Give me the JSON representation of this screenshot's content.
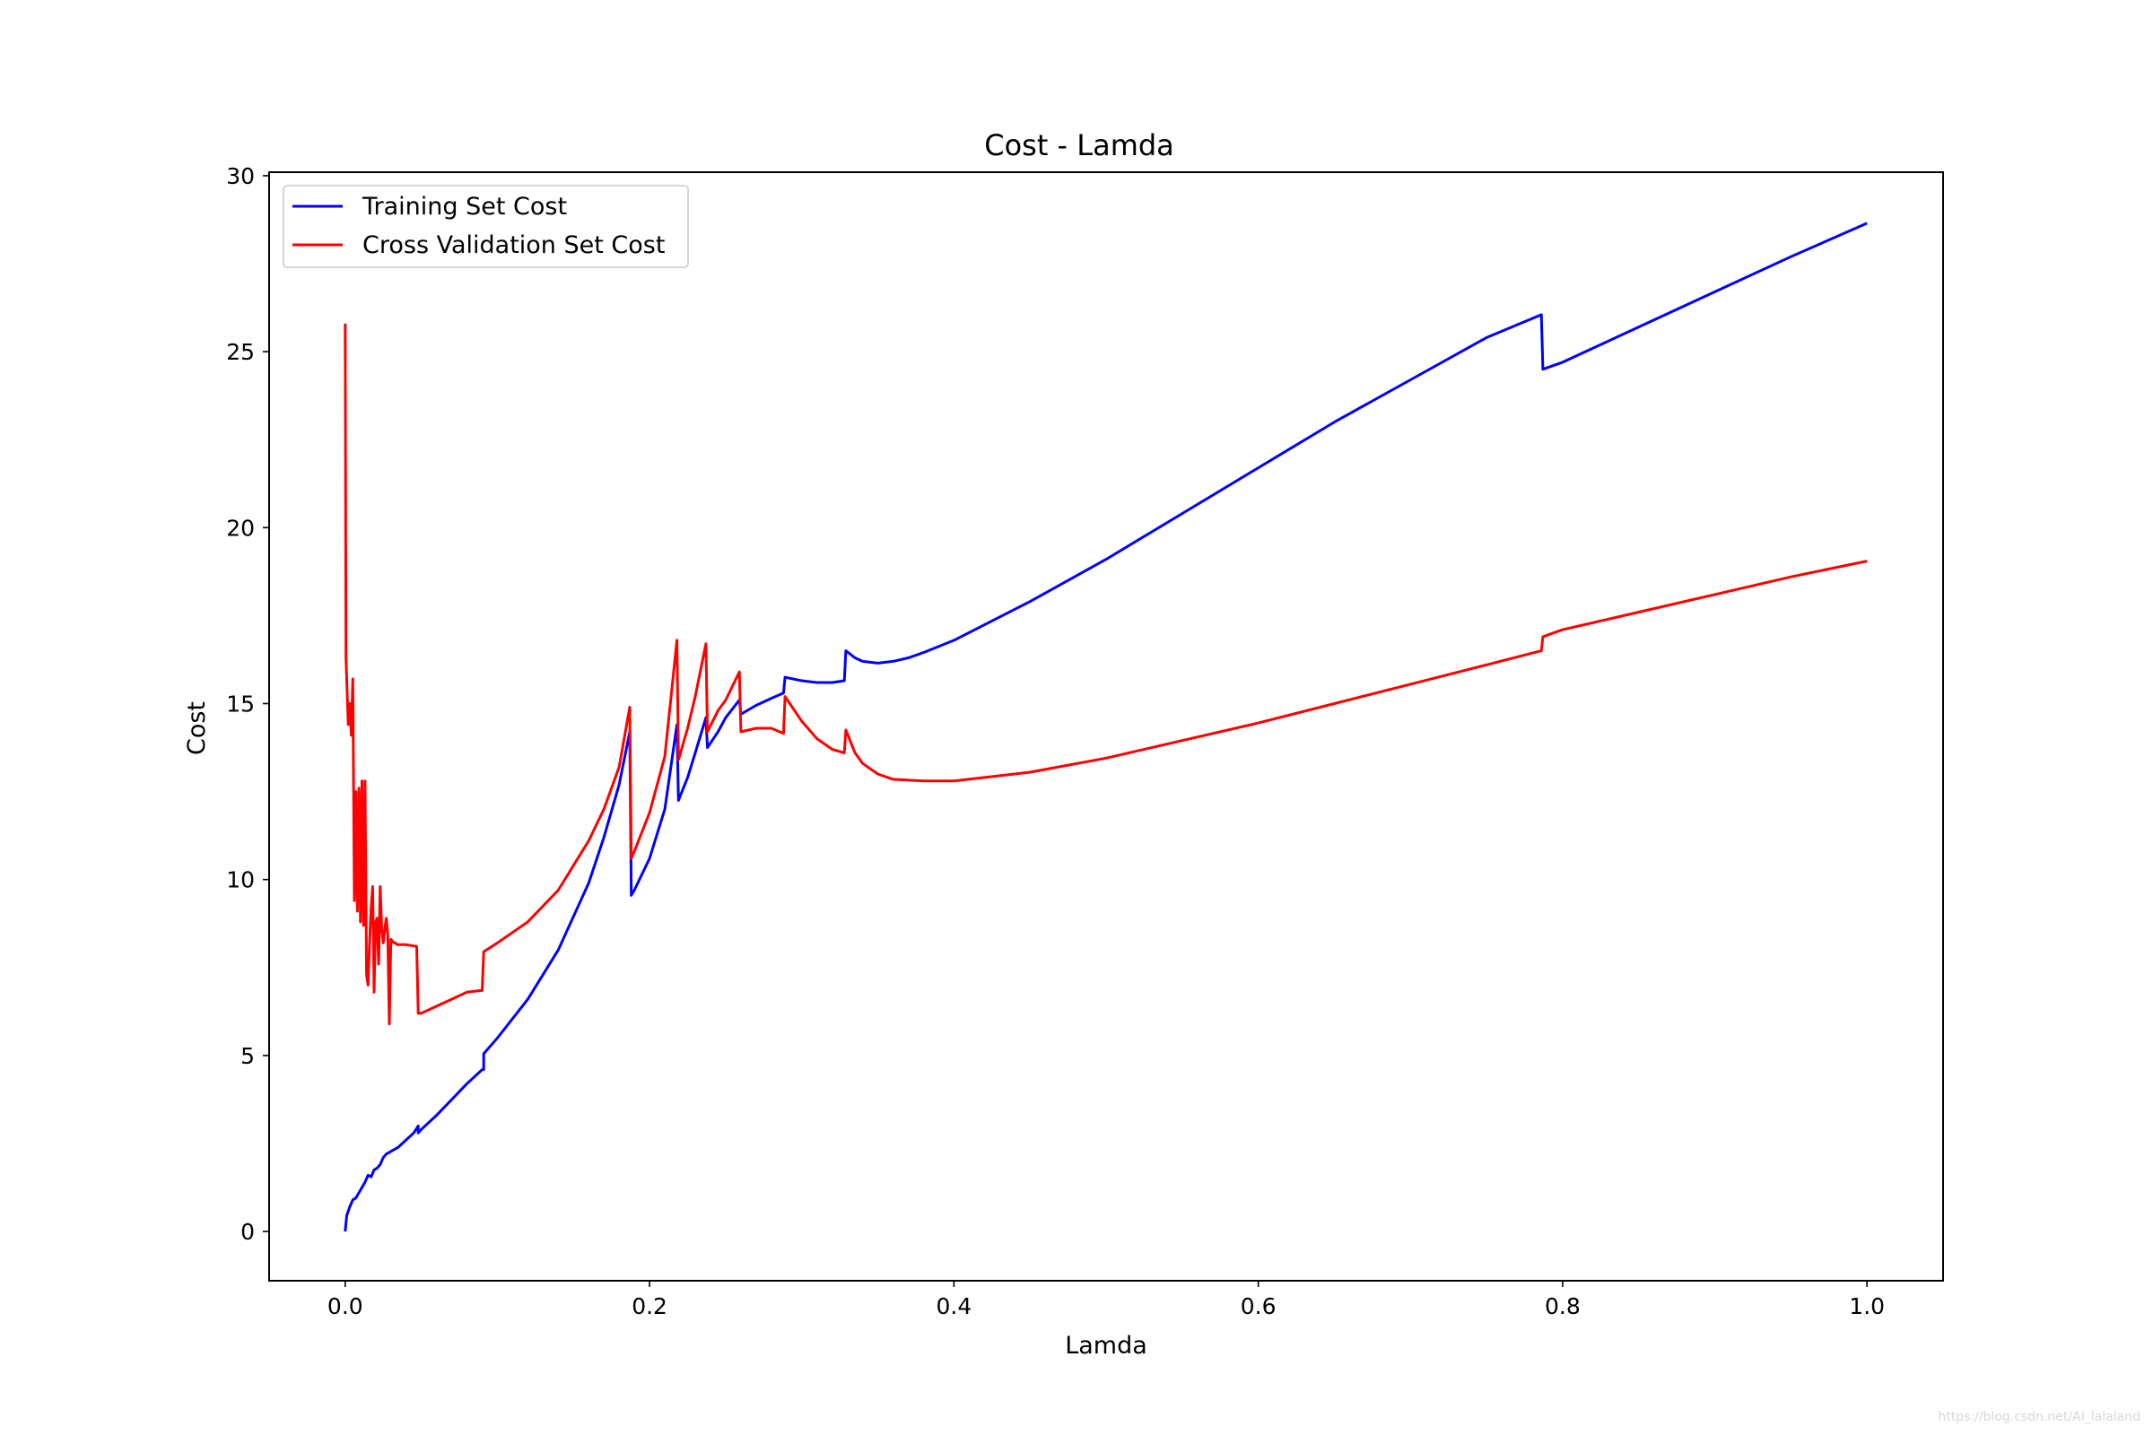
{
  "chart_data": {
    "type": "line",
    "title": "Cost - Lamda",
    "xlabel": "Lamda",
    "ylabel": "Cost",
    "xlim": [
      -0.05,
      1.05
    ],
    "ylim": [
      -1.4,
      30.1
    ],
    "xticks": [
      0.0,
      0.2,
      0.4,
      0.6,
      0.8,
      1.0
    ],
    "xtick_labels": [
      "0.0",
      "0.2",
      "0.4",
      "0.6",
      "0.8",
      "1.0"
    ],
    "yticks": [
      0,
      5,
      10,
      15,
      20,
      25,
      30
    ],
    "ytick_labels": [
      "0",
      "5",
      "10",
      "15",
      "20",
      "25",
      "30"
    ],
    "grid": false,
    "legend_position": "top-left",
    "series": [
      {
        "name": "Training Set Cost",
        "color": "#0000ff",
        "x": [
          0.0,
          0.001,
          0.003,
          0.005,
          0.007,
          0.009,
          0.011,
          0.013,
          0.015,
          0.017,
          0.019,
          0.021,
          0.023,
          0.025,
          0.027,
          0.029,
          0.031,
          0.033,
          0.035,
          0.04,
          0.045,
          0.048,
          0.048,
          0.05,
          0.06,
          0.07,
          0.08,
          0.09,
          0.091,
          0.091,
          0.1,
          0.12,
          0.14,
          0.16,
          0.17,
          0.18,
          0.187,
          0.188,
          0.19,
          0.2,
          0.21,
          0.218,
          0.219,
          0.225,
          0.23,
          0.237,
          0.238,
          0.245,
          0.25,
          0.259,
          0.26,
          0.27,
          0.28,
          0.288,
          0.289,
          0.3,
          0.31,
          0.32,
          0.328,
          0.329,
          0.335,
          0.34,
          0.35,
          0.36,
          0.37,
          0.38,
          0.4,
          0.45,
          0.5,
          0.55,
          0.6,
          0.65,
          0.7,
          0.75,
          0.786,
          0.787,
          0.8,
          0.85,
          0.9,
          0.95,
          1.0
        ],
        "y": [
          0.0,
          0.45,
          0.7,
          0.9,
          0.95,
          1.1,
          1.25,
          1.4,
          1.6,
          1.55,
          1.75,
          1.8,
          1.9,
          2.1,
          2.2,
          2.25,
          2.3,
          2.35,
          2.4,
          2.6,
          2.8,
          3.0,
          2.8,
          2.9,
          3.3,
          3.75,
          4.2,
          4.6,
          4.6,
          5.05,
          5.5,
          6.6,
          8.0,
          9.9,
          11.2,
          12.7,
          14.2,
          9.55,
          9.7,
          10.6,
          12.0,
          14.4,
          12.25,
          12.9,
          13.6,
          14.6,
          13.75,
          14.2,
          14.6,
          15.1,
          14.7,
          14.95,
          15.15,
          15.3,
          15.75,
          15.65,
          15.6,
          15.6,
          15.65,
          16.5,
          16.3,
          16.2,
          16.15,
          16.2,
          16.3,
          16.45,
          16.8,
          17.9,
          19.1,
          20.4,
          21.7,
          23.0,
          24.2,
          25.4,
          26.05,
          24.5,
          24.7,
          25.7,
          26.7,
          27.7,
          28.65
        ]
      },
      {
        "name": "Cross Validation Set Cost",
        "color": "#ff0000",
        "x": [
          0.0,
          0.0005,
          0.002,
          0.003,
          0.004,
          0.005,
          0.006,
          0.007,
          0.008,
          0.009,
          0.01,
          0.011,
          0.012,
          0.013,
          0.014,
          0.015,
          0.016,
          0.017,
          0.018,
          0.019,
          0.02,
          0.021,
          0.022,
          0.023,
          0.024,
          0.025,
          0.026,
          0.027,
          0.028,
          0.029,
          0.03,
          0.031,
          0.032,
          0.033,
          0.034,
          0.035,
          0.04,
          0.047,
          0.048,
          0.05,
          0.06,
          0.07,
          0.08,
          0.09,
          0.091,
          0.1,
          0.12,
          0.14,
          0.16,
          0.17,
          0.18,
          0.187,
          0.188,
          0.19,
          0.2,
          0.21,
          0.218,
          0.219,
          0.225,
          0.23,
          0.237,
          0.238,
          0.245,
          0.25,
          0.259,
          0.26,
          0.27,
          0.28,
          0.288,
          0.289,
          0.3,
          0.31,
          0.32,
          0.328,
          0.329,
          0.335,
          0.34,
          0.35,
          0.36,
          0.38,
          0.4,
          0.45,
          0.5,
          0.55,
          0.6,
          0.65,
          0.7,
          0.75,
          0.786,
          0.787,
          0.8,
          0.85,
          0.9,
          0.95,
          1.0
        ],
        "y": [
          25.8,
          16.3,
          14.4,
          15.0,
          14.1,
          15.7,
          9.4,
          12.5,
          9.1,
          12.6,
          8.8,
          12.8,
          8.7,
          12.8,
          7.3,
          7.0,
          8.2,
          9.2,
          9.8,
          6.8,
          8.8,
          8.9,
          7.6,
          9.8,
          8.6,
          8.2,
          8.6,
          8.9,
          8.4,
          5.9,
          8.3,
          8.25,
          8.2,
          8.2,
          8.15,
          8.15,
          8.15,
          8.1,
          6.2,
          6.2,
          6.4,
          6.6,
          6.8,
          6.85,
          7.95,
          8.2,
          8.8,
          9.7,
          11.1,
          12.0,
          13.2,
          14.9,
          10.6,
          10.8,
          11.9,
          13.5,
          16.8,
          13.4,
          14.3,
          15.2,
          16.7,
          14.2,
          14.8,
          15.1,
          15.9,
          14.2,
          14.3,
          14.3,
          14.15,
          15.2,
          14.5,
          14.0,
          13.7,
          13.6,
          14.25,
          13.6,
          13.3,
          13.0,
          12.85,
          12.8,
          12.8,
          13.05,
          13.45,
          13.95,
          14.45,
          15.0,
          15.55,
          16.1,
          16.5,
          16.9,
          17.1,
          17.6,
          18.1,
          18.6,
          19.05
        ]
      }
    ]
  },
  "watermark": "https://blog.csdn.net/AI_lalaland"
}
